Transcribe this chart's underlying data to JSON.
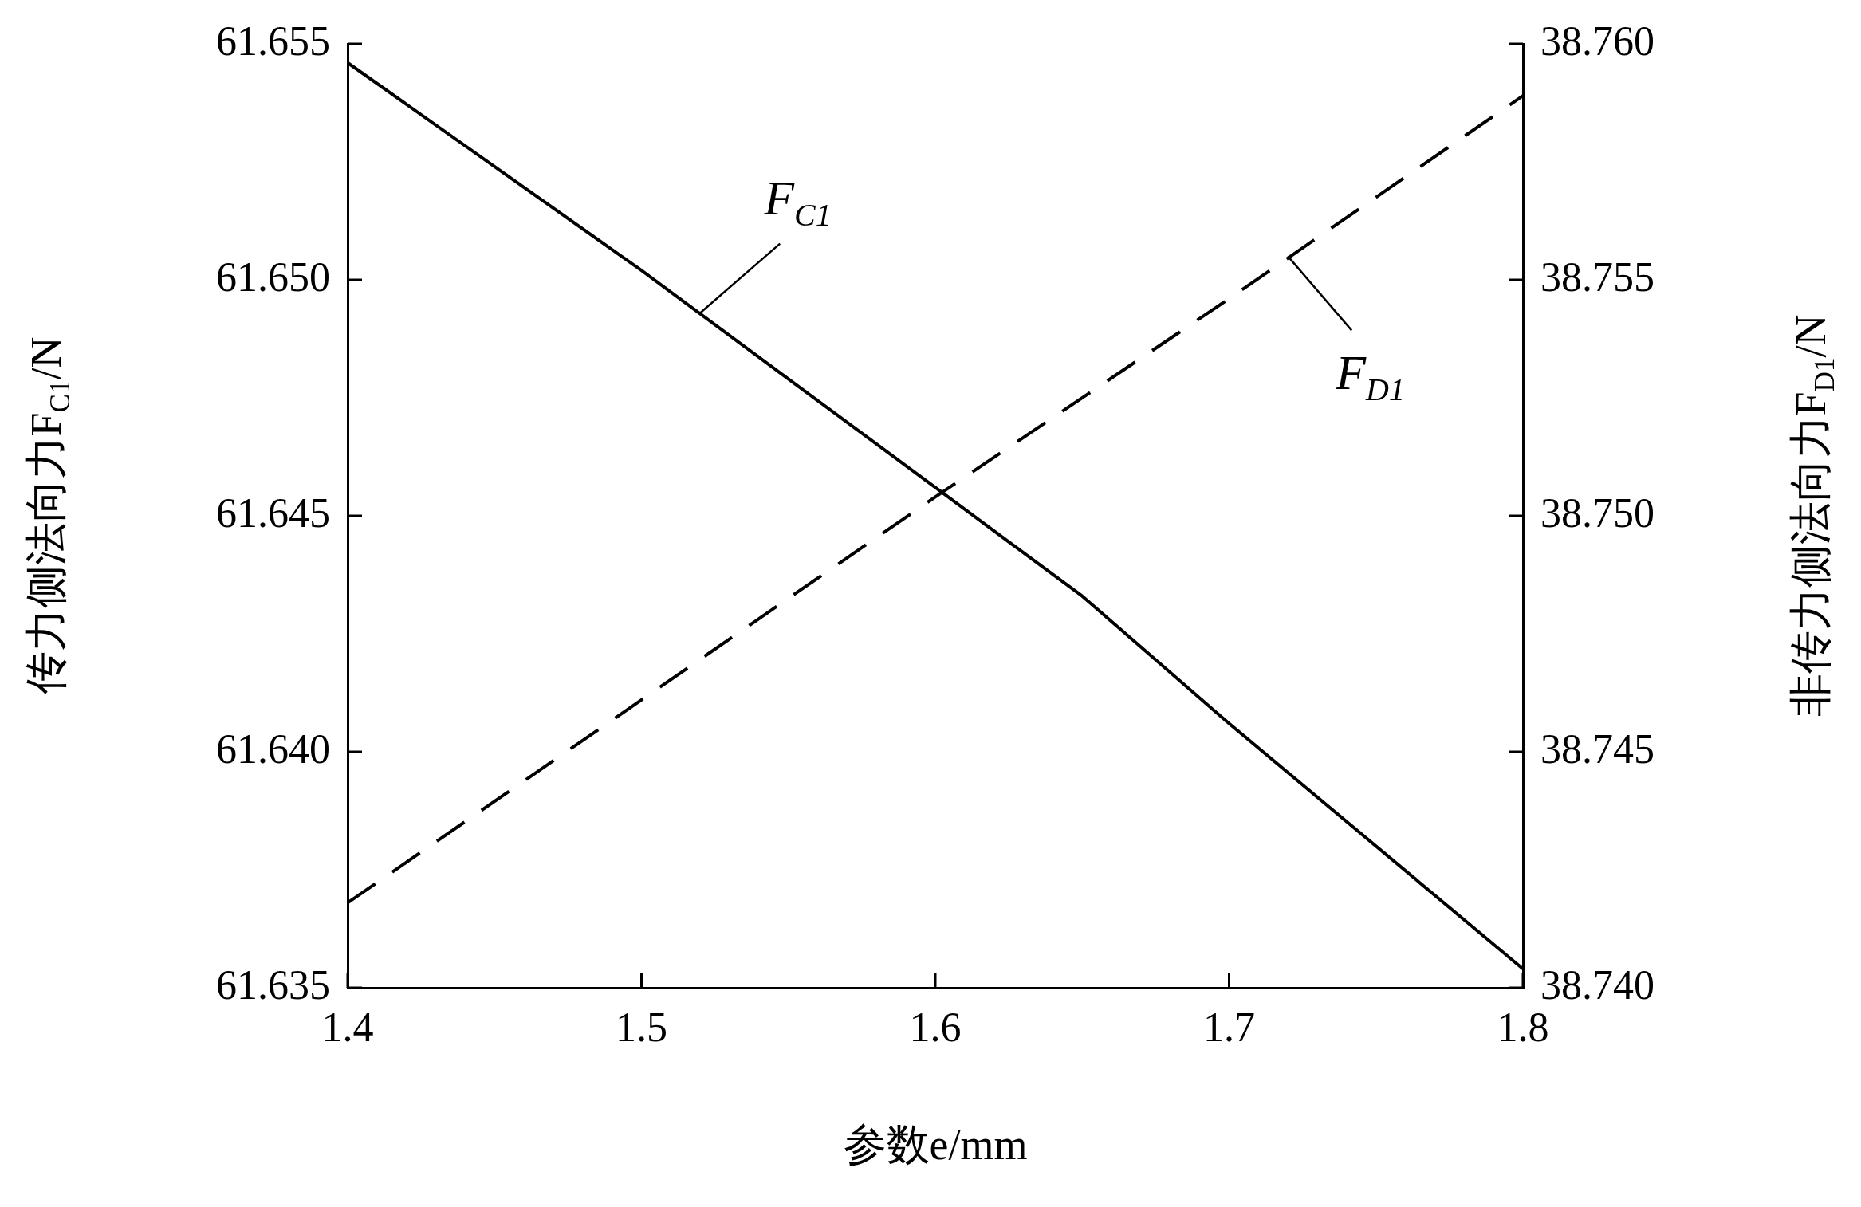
{
  "chart_data": {
    "type": "line",
    "xlabel": "参数e/mm",
    "ylabel": "传力侧法向力F$_{C1}$/N",
    "y2label": "非传力侧法向力F$_{D1}$/N",
    "x": [
      1.4,
      1.5,
      1.6,
      1.65,
      1.7,
      1.8
    ],
    "series": [
      {
        "color": "#000000",
        "line_style": "solid",
        "values": [
          61.6546,
          61.6502,
          61.6456,
          61.6433,
          61.6406,
          61.6354
        ]
      },
      {
        "color": "#000000",
        "line_style": "dashed",
        "axis": "y2",
        "x": [
          1.4,
          1.5,
          1.6,
          1.7,
          1.8
        ],
        "values": [
          38.7418,
          38.7461,
          38.7504,
          38.7546,
          38.7589
        ]
      }
    ],
    "annotations": [
      {
        "text": "F$_{C1}$",
        "x": 1.52,
        "y": 61.6493
      },
      {
        "text": "F$_{D1}$",
        "x": 1.72,
        "y": 61.6505
      }
    ],
    "xlim": [
      1.4,
      1.8
    ],
    "xticks": [
      1.4,
      1.5,
      1.6,
      1.7,
      1.8
    ],
    "ylim": [
      61.635,
      61.655
    ],
    "yticks": [
      61.635,
      {
        "value": 61.64,
        "label": "61.640"
      },
      61.645,
      {
        "value": 61.65,
        "label": "61.650"
      },
      61.655
    ],
    "y2lim": [
      38.74,
      38.76
    ],
    "y2ticks": [
      {
        "value": 38.74,
        "label": "38.740"
      },
      38.745,
      {
        "value": 38.75,
        "label": "38.750"
      },
      38.755,
      {
        "value": 38.76,
        "label": "38.760"
      }
    ],
    "grid": false,
    "legend": false,
    "marker": "none"
  }
}
